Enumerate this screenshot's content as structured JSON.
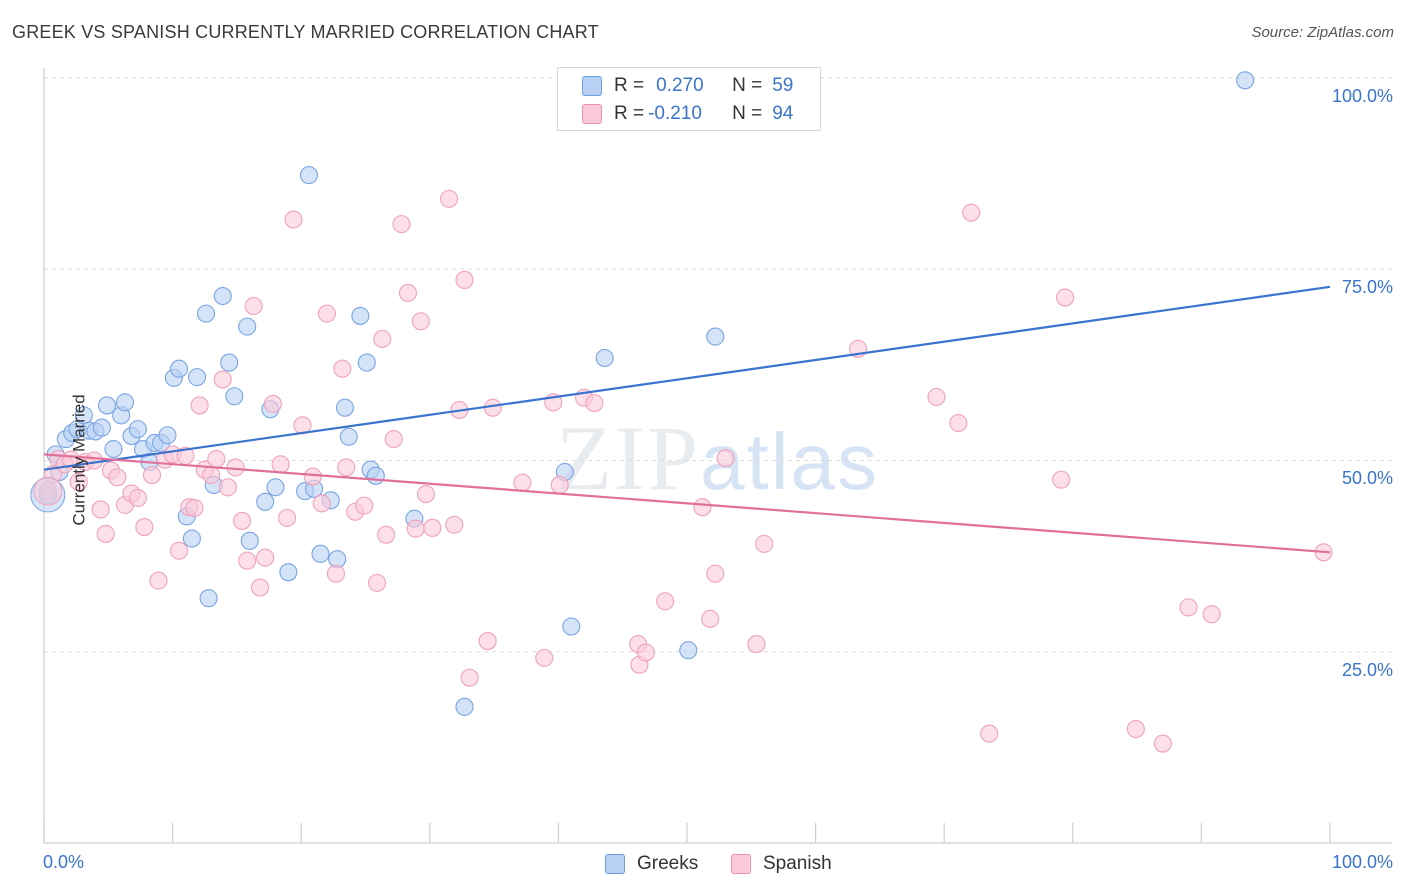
{
  "header": {
    "title": "GREEK VS SPANISH CURRENTLY MARRIED CORRELATION CHART",
    "source": "Source: ZipAtlas.com"
  },
  "watermark": {
    "zip": "ZIP",
    "atlas": "atlas"
  },
  "colors": {
    "greeks": "#3b74cc",
    "spanish": "#e0709a",
    "greeks_fill": "#b8d0f3",
    "spanish_fill": "#fbcad8"
  },
  "legend": {
    "rows": [
      {
        "r_label": "R =",
        "r_value": "0.270",
        "n_label": "N =",
        "n_value": "59"
      },
      {
        "r_label": "R =",
        "r_value": "-0.210",
        "n_label": "N =",
        "n_value": "94"
      }
    ]
  },
  "bottom_legend": {
    "greeks": "Greeks",
    "spanish": "Spanish"
  },
  "chart_data": {
    "type": "scatter",
    "title": "GREEK VS SPANISH CURRENTLY MARRIED CORRELATION CHART",
    "xlabel": "",
    "ylabel": "Currently Married",
    "xlim": [
      0,
      100
    ],
    "ylim": [
      0,
      100
    ],
    "x_tick_labels": [
      "0.0%",
      "100.0%"
    ],
    "y_tick_labels": [
      "25.0%",
      "50.0%",
      "75.0%",
      "100.0%"
    ],
    "y_ticks": [
      25,
      50,
      75,
      100
    ],
    "grid": true,
    "legend_position": "top-center",
    "series": [
      {
        "name": "Greeks",
        "r": 0.27,
        "n": 59,
        "trend": {
          "x": [
            0,
            100
          ],
          "y": [
            48.8,
            72.7
          ]
        },
        "points": [
          [
            0.3,
            45.5
          ],
          [
            0.9,
            50.8
          ],
          [
            1.2,
            48.5
          ],
          [
            1.7,
            52.8
          ],
          [
            2.2,
            53.6
          ],
          [
            2.6,
            54.1
          ],
          [
            3.1,
            55.9
          ],
          [
            3.5,
            53.9
          ],
          [
            4.0,
            53.8
          ],
          [
            4.5,
            54.3
          ],
          [
            4.9,
            57.2
          ],
          [
            5.4,
            51.5
          ],
          [
            6.0,
            55.9
          ],
          [
            6.3,
            57.6
          ],
          [
            6.8,
            53.2
          ],
          [
            7.3,
            54.1
          ],
          [
            7.7,
            51.5
          ],
          [
            8.2,
            49.8
          ],
          [
            8.6,
            52.3
          ],
          [
            9.1,
            52.3
          ],
          [
            9.6,
            53.3
          ],
          [
            10.1,
            60.8
          ],
          [
            10.5,
            62.0
          ],
          [
            11.1,
            42.7
          ],
          [
            11.5,
            39.8
          ],
          [
            11.9,
            60.9
          ],
          [
            12.6,
            69.2
          ],
          [
            12.8,
            32.0
          ],
          [
            13.2,
            46.8
          ],
          [
            13.9,
            71.5
          ],
          [
            14.4,
            62.8
          ],
          [
            14.8,
            58.4
          ],
          [
            15.8,
            67.5
          ],
          [
            16.0,
            39.5
          ],
          [
            17.2,
            44.6
          ],
          [
            17.6,
            56.7
          ],
          [
            18.0,
            46.5
          ],
          [
            19.0,
            35.4
          ],
          [
            20.3,
            46.0
          ],
          [
            20.6,
            87.3
          ],
          [
            21.0,
            46.3
          ],
          [
            21.5,
            37.8
          ],
          [
            22.3,
            44.8
          ],
          [
            22.8,
            37.1
          ],
          [
            23.4,
            56.9
          ],
          [
            23.7,
            53.1
          ],
          [
            24.6,
            68.9
          ],
          [
            25.1,
            62.8
          ],
          [
            25.4,
            48.8
          ],
          [
            25.8,
            48.0
          ],
          [
            28.8,
            42.4
          ],
          [
            32.7,
            17.8
          ],
          [
            40.5,
            48.5
          ],
          [
            41.0,
            28.3
          ],
          [
            43.6,
            63.4
          ],
          [
            50.1,
            25.2
          ],
          [
            52.2,
            66.2
          ],
          [
            56.1,
            100.0
          ],
          [
            93.4,
            99.7
          ]
        ]
      },
      {
        "name": "Spanish",
        "r": -0.21,
        "n": 94,
        "trend": {
          "x": [
            0,
            100
          ],
          "y": [
            50.8,
            38.0
          ]
        },
        "points": [
          [
            0.3,
            46.0
          ],
          [
            0.7,
            48.2
          ],
          [
            1.1,
            50.2
          ],
          [
            1.6,
            49.5
          ],
          [
            2.1,
            50.1
          ],
          [
            2.7,
            47.2
          ],
          [
            3.2,
            49.8
          ],
          [
            3.9,
            50.0
          ],
          [
            4.4,
            43.6
          ],
          [
            4.8,
            40.4
          ],
          [
            5.2,
            48.7
          ],
          [
            5.7,
            47.8
          ],
          [
            6.3,
            44.2
          ],
          [
            6.8,
            45.7
          ],
          [
            7.3,
            45.1
          ],
          [
            7.8,
            41.3
          ],
          [
            8.4,
            48.1
          ],
          [
            8.9,
            34.3
          ],
          [
            9.4,
            50.1
          ],
          [
            10.0,
            50.8
          ],
          [
            10.5,
            38.2
          ],
          [
            11.0,
            50.6
          ],
          [
            11.3,
            43.9
          ],
          [
            11.7,
            43.8
          ],
          [
            12.1,
            57.2
          ],
          [
            12.5,
            48.8
          ],
          [
            13.0,
            48.1
          ],
          [
            13.4,
            50.2
          ],
          [
            13.9,
            60.6
          ],
          [
            14.3,
            46.5
          ],
          [
            14.9,
            49.1
          ],
          [
            15.4,
            42.1
          ],
          [
            15.8,
            36.9
          ],
          [
            16.3,
            70.2
          ],
          [
            16.8,
            33.4
          ],
          [
            17.2,
            37.3
          ],
          [
            17.8,
            57.4
          ],
          [
            18.4,
            49.5
          ],
          [
            18.9,
            42.5
          ],
          [
            19.4,
            81.5
          ],
          [
            20.1,
            54.6
          ],
          [
            20.9,
            47.9
          ],
          [
            21.6,
            44.4
          ],
          [
            22.0,
            69.2
          ],
          [
            22.7,
            35.2
          ],
          [
            23.2,
            62.0
          ],
          [
            23.5,
            49.1
          ],
          [
            24.2,
            43.3
          ],
          [
            24.9,
            44.1
          ],
          [
            25.9,
            34.0
          ],
          [
            26.3,
            65.9
          ],
          [
            26.6,
            40.3
          ],
          [
            27.2,
            52.8
          ],
          [
            27.8,
            80.9
          ],
          [
            28.3,
            71.9
          ],
          [
            28.9,
            41.1
          ],
          [
            29.3,
            68.2
          ],
          [
            29.7,
            45.6
          ],
          [
            30.2,
            41.2
          ],
          [
            31.5,
            84.2
          ],
          [
            31.9,
            41.6
          ],
          [
            32.3,
            56.6
          ],
          [
            32.7,
            73.6
          ],
          [
            33.1,
            21.6
          ],
          [
            34.5,
            26.4
          ],
          [
            34.9,
            56.9
          ],
          [
            37.2,
            47.1
          ],
          [
            38.9,
            24.2
          ],
          [
            39.6,
            57.6
          ],
          [
            40.1,
            46.8
          ],
          [
            42.0,
            58.2
          ],
          [
            42.8,
            57.5
          ],
          [
            46.2,
            26.0
          ],
          [
            46.3,
            23.3
          ],
          [
            46.8,
            24.9
          ],
          [
            48.3,
            31.6
          ],
          [
            51.2,
            43.9
          ],
          [
            51.8,
            29.3
          ],
          [
            52.2,
            35.2
          ],
          [
            53.0,
            50.3
          ],
          [
            55.4,
            26.0
          ],
          [
            56.0,
            39.1
          ],
          [
            63.3,
            64.6
          ],
          [
            69.4,
            58.3
          ],
          [
            71.1,
            54.9
          ],
          [
            72.1,
            82.4
          ],
          [
            73.5,
            14.3
          ],
          [
            79.1,
            47.5
          ],
          [
            79.4,
            71.3
          ],
          [
            84.9,
            14.9
          ],
          [
            87.0,
            13.0
          ],
          [
            89.0,
            30.8
          ],
          [
            90.8,
            29.9
          ],
          [
            99.5,
            38.0
          ]
        ]
      }
    ]
  }
}
